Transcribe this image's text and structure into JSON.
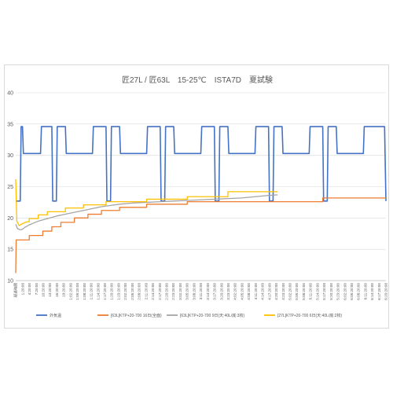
{
  "chart_data": {
    "type": "line",
    "title": "匠27L / 匠63L　15-25℃　ISTA7D　夏試験",
    "xlabel": "",
    "ylabel": "",
    "ylim": [
      10,
      40
    ],
    "yticks": [
      10,
      15,
      20,
      25,
      30,
      35,
      40
    ],
    "grid": true,
    "legend_position": "bottom",
    "x_tick_labels": [
      "経過時間",
      "0:00:00",
      "0:10:00",
      "1:20:00",
      "2:20:00",
      "3:20:00",
      "4:20:00",
      "5:20:00",
      "6:20:00",
      "7:20:00",
      "8:20:00",
      "9:20:00",
      "10:20:00",
      "11:20:00",
      "12:20:00",
      "13:20:00",
      "14:20:00",
      "15:20:00",
      "16:20:00",
      "17:20:00",
      "18:20:00",
      "19:20:00",
      "1:00:20:00",
      "1:01:20:00",
      "1:02:20:00",
      "1:03:20:00",
      "1:04:20:00",
      "1:05:20:00",
      "1:06:20:00",
      "1:07:20:00",
      "1:08:20:00",
      "1:09:20:00",
      "1:10:20:00",
      "1:11:20:00",
      "1:12:20:00",
      "1:13:20:00",
      "1:14:20:00",
      "1:15:20:00",
      "1:16:20:00",
      "1:17:20:00",
      "1:18:20:00",
      "1:19:20:00",
      "1:20:20:00",
      "1:21:20:00",
      "1:22:20:00",
      "1:23:20:00",
      "2:00:20:00",
      "2:01:20:00",
      "2:02:20:00",
      "2:03:20:00",
      "2:04:20:00",
      "2:05:20:00",
      "2:06:20:00",
      "2:07:20:00",
      "2:08:20:00",
      "2:09:20:00",
      "2:10:20:00",
      "2:11:20:00",
      "2:12:20:00",
      "2:13:20:00",
      "2:14:20:00",
      "2:15:20:00",
      "2:16:20:00",
      "2:17:20:00",
      "2:18:20:00",
      "2:19:20:00",
      "2:20:20:00",
      "2:21:20:00",
      "2:22:20:00",
      "2:23:20:00",
      "3:00:20:00",
      "3:01:20:00",
      "3:02:20:00",
      "3:03:20:00",
      "3:04:20:00",
      "3:05:20:00",
      "3:06:20:00",
      "3:07:20:00",
      "3:08:20:00",
      "3:09:20:00",
      "3:10:20:00",
      "3:11:20:00",
      "3:12:20:00",
      "3:13:20:00",
      "3:14:20:00",
      "3:15:20:00",
      "3:16:20:00",
      "3:17:20:00",
      "3:18:20:00",
      "3:19:20:00",
      "3:20:20:00",
      "3:21:20:00",
      "3:22:20:00",
      "3:23:20:00",
      "4:00:20:00",
      "4:01:20:00",
      "4:02:20:00",
      "4:03:20:00",
      "4:04:20:00",
      "4:05:20:00",
      "4:06:20:00",
      "4:07:20:00",
      "4:08:20:00",
      "4:09:20:00",
      "4:10:20:00",
      "4:11:20:00",
      "4:12:20:00",
      "4:13:20:00",
      "4:14:20:00",
      "4:15:20:00",
      "4:16:20:00",
      "4:17:20:00",
      "4:18:20:00",
      "4:19:20:00",
      "4:20:20:00",
      "4:21:20:00",
      "4:22:20:00",
      "4:23:20:00",
      "5:00:20:00",
      "5:01:20:00",
      "5:02:20:00",
      "5:03:20:00",
      "5:04:20:00",
      "5:05:20:00",
      "5:06:20:00",
      "5:07:20:00",
      "5:08:20:00",
      "5:09:20:00",
      "5:10:20:00",
      "5:11:20:00",
      "5:12:20:00",
      "5:13:20:00",
      "5:14:20:00",
      "5:15:20:00",
      "5:16:20:00",
      "5:17:20:00",
      "5:18:20:00",
      "5:19:20:00",
      "5:20:20:00",
      "5:21:20:00",
      "5:22:20:00",
      "5:23:20:00",
      "6:00:20:00",
      "6:01:20:00",
      "6:02:20:00",
      "6:03:20:00",
      "6:04:20:00",
      "6:05:20:00",
      "6:06:20:00",
      "6:07:20:00",
      "6:08:20:00",
      "6:09:20:00",
      "6:10:20:00",
      "6:11:20:00",
      "6:12:20:00",
      "6:13:20:00",
      "6:14:20:00",
      "6:15:20:00",
      "6:16:20:00",
      "6:17:20:00",
      "6:18:20:00",
      "6:19:20:00",
      "6:20:20:00"
    ],
    "x_max_hours": 164,
    "series": [
      {
        "name": "外気温",
        "color": "#4472C4",
        "points": [
          [
            0,
            22.7
          ],
          [
            2,
            22.7
          ],
          [
            2.4,
            34.6
          ],
          [
            3,
            34.6
          ],
          [
            3.4,
            30.3
          ],
          [
            11,
            30.3
          ],
          [
            11.4,
            34.6
          ],
          [
            16,
            34.6
          ],
          [
            16.4,
            22.7
          ],
          [
            18,
            22.7
          ],
          [
            18.4,
            34.6
          ],
          [
            22,
            34.6
          ],
          [
            22.4,
            30.3
          ],
          [
            34,
            30.3
          ],
          [
            34.4,
            34.6
          ],
          [
            40,
            34.6
          ],
          [
            40.4,
            22.7
          ],
          [
            42,
            22.7
          ],
          [
            42.4,
            34.6
          ],
          [
            46,
            34.6
          ],
          [
            46.4,
            30.3
          ],
          [
            58,
            30.3
          ],
          [
            58.4,
            34.6
          ],
          [
            64,
            34.6
          ],
          [
            64.4,
            22.7
          ],
          [
            66,
            22.7
          ],
          [
            66.4,
            34.6
          ],
          [
            70,
            34.6
          ],
          [
            70.4,
            30.3
          ],
          [
            82,
            30.3
          ],
          [
            82.4,
            34.6
          ],
          [
            88,
            34.6
          ],
          [
            88.4,
            22.7
          ],
          [
            90,
            22.7
          ],
          [
            90.4,
            34.6
          ],
          [
            94,
            34.6
          ],
          [
            94.4,
            30.3
          ],
          [
            106,
            30.3
          ],
          [
            106.4,
            34.6
          ],
          [
            112,
            34.6
          ],
          [
            112.4,
            22.7
          ],
          [
            114,
            22.7
          ],
          [
            114.4,
            34.6
          ],
          [
            118,
            34.6
          ],
          [
            118.4,
            30.3
          ],
          [
            130,
            30.3
          ],
          [
            130.4,
            34.6
          ],
          [
            136,
            34.6
          ],
          [
            136.4,
            22.7
          ],
          [
            138,
            22.7
          ],
          [
            138.4,
            34.6
          ],
          [
            142,
            34.6
          ],
          [
            142.4,
            30.3
          ],
          [
            154,
            30.3
          ],
          [
            154.4,
            34.6
          ],
          [
            163.4,
            34.6
          ],
          [
            164,
            22.7
          ]
        ]
      },
      {
        "name": "[63L]KTP+20-700 16日(全面)",
        "color": "#ED7D31",
        "points": [
          [
            0,
            11.2
          ],
          [
            0.2,
            16.5
          ],
          [
            6,
            16.5
          ],
          [
            6,
            17.2
          ],
          [
            12,
            17.2
          ],
          [
            12,
            17.9
          ],
          [
            16,
            17.9
          ],
          [
            16,
            18.6
          ],
          [
            20,
            18.6
          ],
          [
            20,
            19.3
          ],
          [
            26,
            19.3
          ],
          [
            26,
            20
          ],
          [
            32,
            20
          ],
          [
            32,
            20.6
          ],
          [
            38,
            20.6
          ],
          [
            38,
            21.2
          ],
          [
            46,
            21.2
          ],
          [
            46,
            21.7
          ],
          [
            58,
            21.7
          ],
          [
            58,
            22.2
          ],
          [
            76,
            22.2
          ],
          [
            76,
            22.6
          ],
          [
            136,
            22.6
          ],
          [
            136,
            23.2
          ],
          [
            164,
            23.2
          ]
        ]
      },
      {
        "name": "[63L]KTP+20-700 9日(天:40L/底:3枚)",
        "color": "#A5A5A5",
        "points": [
          [
            0,
            19
          ],
          [
            0.8,
            18.3
          ],
          [
            2,
            18.1
          ],
          [
            3,
            18.2
          ],
          [
            4,
            18.5
          ],
          [
            6,
            18.9
          ],
          [
            8,
            19.2
          ],
          [
            10,
            19.5
          ],
          [
            14,
            19.9
          ],
          [
            18,
            20.3
          ],
          [
            22,
            20.6
          ],
          [
            26,
            20.9
          ],
          [
            30,
            21.2
          ],
          [
            34,
            21.5
          ],
          [
            38,
            21.8
          ],
          [
            42,
            22
          ],
          [
            46,
            22.2
          ],
          [
            52,
            22.4
          ],
          [
            58,
            22.5
          ],
          [
            64,
            22.6
          ],
          [
            70,
            22.7
          ],
          [
            76,
            22.8
          ],
          [
            82,
            22.9
          ],
          [
            88,
            23
          ],
          [
            94,
            23.1
          ],
          [
            100,
            23.2
          ],
          [
            106,
            23.4
          ],
          [
            112,
            23.6
          ],
          [
            116,
            23.7
          ]
        ]
      },
      {
        "name": "[27L]KTP+20-700 6日(天:40L/底:2枚)",
        "color": "#FFC000",
        "points": [
          [
            0,
            26.2
          ],
          [
            0.5,
            19.5
          ],
          [
            1.5,
            18.8
          ],
          [
            3,
            19.1
          ],
          [
            5,
            19.4
          ],
          [
            6,
            19.4
          ],
          [
            6,
            19.9
          ],
          [
            10,
            19.9
          ],
          [
            10,
            20.5
          ],
          [
            14,
            20.5
          ],
          [
            14,
            21
          ],
          [
            22,
            21
          ],
          [
            22,
            21.6
          ],
          [
            30,
            21.6
          ],
          [
            30,
            22.1
          ],
          [
            40,
            22.1
          ],
          [
            40,
            22.6
          ],
          [
            58,
            22.6
          ],
          [
            58,
            23
          ],
          [
            76,
            23
          ],
          [
            76,
            23.4
          ],
          [
            94,
            23.4
          ],
          [
            94,
            24.2
          ],
          [
            116,
            24.2
          ]
        ]
      }
    ]
  }
}
